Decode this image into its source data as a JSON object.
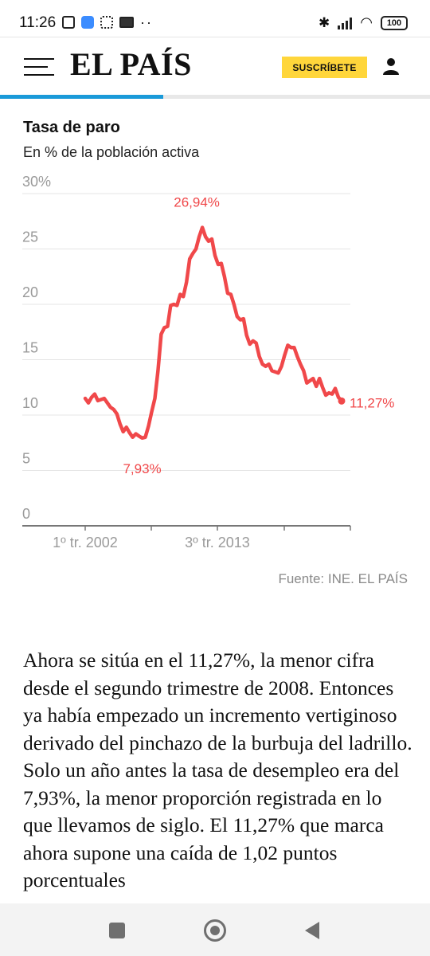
{
  "status_bar": {
    "time": "11:26",
    "battery": "100",
    "icons": [
      "nfc-icon",
      "app-icon",
      "qr-icon",
      "card-icon",
      "more-icon",
      "bluetooth-icon",
      "signal-icon",
      "wifi-icon",
      "battery-icon"
    ]
  },
  "header": {
    "logo": "EL PAÍS",
    "subscribe_label": "SUSCRÍBETE",
    "menu_icon": "hamburger-menu-icon",
    "user_icon": "user-icon",
    "reading_progress": 0.38,
    "colors": {
      "subscribe_bg": "#ffd63b",
      "progress": "#1a9ad9"
    }
  },
  "chart": {
    "title": "Tasa de paro",
    "subtitle": "En % de la población activa",
    "source": "Fuente: INE. EL PAÍS"
  },
  "chart_data": {
    "type": "line",
    "title": "Tasa de paro",
    "subtitle": "En % de la población activa",
    "xlabel": "",
    "ylabel": "",
    "ylim": [
      0,
      30
    ],
    "y_ticks": [
      "30%",
      "25",
      "20",
      "15",
      "10",
      "5",
      "0"
    ],
    "x_ticks": [
      "1º tr. 2002",
      "3º tr. 2013"
    ],
    "grid": true,
    "line_color": "#f0484a",
    "series": [
      {
        "values": [
          11.5,
          11.1,
          11.6,
          11.9,
          11.3,
          11.4,
          11.5,
          11.1,
          10.7,
          10.5,
          10.1,
          9.2,
          8.5,
          8.9,
          8.4,
          8.0,
          8.3,
          8.1,
          7.93,
          8.0,
          9.0,
          10.3,
          11.5,
          14.0,
          17.3,
          17.9,
          18.0,
          19.9,
          20.0,
          19.9,
          20.9,
          20.7,
          22.0,
          24.1,
          24.6,
          25.0,
          26.1,
          26.94,
          26.1,
          25.7,
          25.9,
          24.4,
          23.6,
          23.7,
          22.5,
          21.0,
          20.9,
          20.0,
          18.9,
          18.6,
          18.7,
          17.2,
          16.4,
          16.7,
          16.5,
          15.3,
          14.6,
          14.4,
          14.6,
          14.0,
          13.9,
          13.8,
          14.4,
          15.4,
          16.3,
          16.1,
          16.1,
          15.3,
          14.6,
          14.0,
          12.9,
          13.1,
          13.3,
          12.6,
          13.3,
          12.5,
          11.8,
          12.0,
          11.9,
          12.4,
          11.6,
          11.27
        ]
      }
    ],
    "annotations": [
      {
        "label": "26,94%",
        "value": 26.94
      },
      {
        "label": "7,93%",
        "value": 7.93
      },
      {
        "label": "11,27%",
        "value": 11.27
      }
    ]
  },
  "article": {
    "paragraph": "Ahora se sitúa en el 11,27%, la menor cifra desde el segundo trimestre de 2008. Entonces ya había empezado un incremento vertiginoso derivado del pinchazo de la burbuja del ladrillo. Solo un año antes la tasa de desempleo era del 7,93%, la menor proporción registrada en lo que llevamos de siglo. El 11,27% que marca ahora supone una caída de 1,02 puntos porcentuales"
  },
  "nav_bar": {
    "buttons": [
      "recents-button",
      "home-button",
      "back-button"
    ]
  }
}
